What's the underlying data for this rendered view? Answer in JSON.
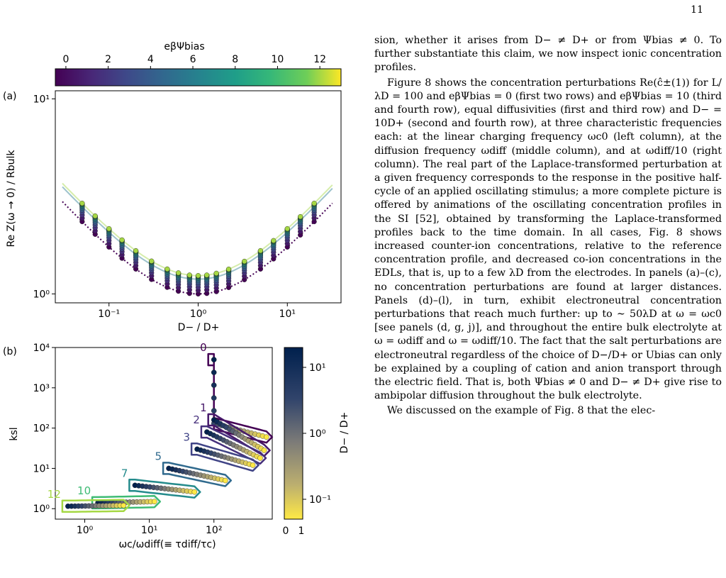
{
  "page": {
    "number": "11"
  },
  "body_text": {
    "p1": "sion, whether it arises from D− ≠ D+ or from Ψbias ≠ 0. To further substantiate this claim, we now inspect ionic concentration profiles.",
    "p2": "Figure 8 shows the concentration perturbations Re(ĉ±(1)) for L/λD = 100 and eβΨbias = 0 (first two rows) and eβΨbias = 10 (third and fourth row), equal diffusivities (first and third row) and D− = 10D+ (second and fourth row), at three characteristic frequencies each: at the linear charging frequency ωc0 (left column), at the diffusion frequency ωdiff (middle column), and at ωdiff/10 (right column). The real part of the Laplace-transformed perturbation at a given frequency corresponds to the response in the positive half-cycle of an applied oscillating stimulus; a more complete picture is offered by animations of the oscillating concentration profiles in the SI [52], obtained by transforming the Laplace-transformed profiles back to the time domain. In all cases, Fig. 8 shows increased counter-ion concentrations, relative to the reference concentration profile, and decreased co-ion concentrations in the EDLs, that is, up to a few λD from the electrodes. In panels (a)–(c), no concentration perturbations are found at larger distances. Panels (d)–(l), in turn, exhibit electroneutral concentration perturbations that reach much further: up to ∼ 50λD at ω = ωc0 [see panels (d, g, j)], and throughout the entire bulk electrolyte at ω = ωdiff and ω = ωdiff/10. The fact that the salt perturbations are electroneutral regardless of the choice of D−/D+ or Ubias can only be explained by a coupling of cation and anion transport through the electric field. That is, both Ψbias ≠ 0 and D− ≠ D+ give rise to ambipolar diffusion throughout the bulk electrolyte.",
    "p3": "We discussed on the example of Fig. 8 that the elec-"
  },
  "figure": {
    "panel_a": {
      "label": "(a)",
      "colorbar_title": "eβΨbias",
      "colorbar_ticks": [
        "0",
        "2",
        "4",
        "6",
        "8",
        "10",
        "12"
      ],
      "ylabel": "Re Z(ω → 0) / Rbulk",
      "xlabel": "D− / D+",
      "yticks": [
        "10⁰",
        "10¹"
      ],
      "xticks": [
        "10⁻¹",
        "10⁰",
        "10¹"
      ]
    },
    "panel_b": {
      "label": "(b)",
      "ylabel": "ksl",
      "xlabel": "ωc/ωdiff(≡ τdiff/τc)",
      "yticks": [
        "10⁰",
        "10¹",
        "10²",
        "10³",
        "10⁴"
      ],
      "xticks": [
        "10⁰",
        "10¹",
        "10²"
      ],
      "colorbar_label": "D− / D+",
      "colorbar_ticks": [
        "10¹",
        "10⁰",
        "10⁻¹"
      ],
      "colorbar_bottom": [
        "0",
        "1"
      ],
      "group_labels": [
        "0",
        "1",
        "2",
        "3",
        "5",
        "7",
        "10",
        "12"
      ]
    }
  },
  "chart_data": [
    {
      "type": "scatter",
      "title": "",
      "xlabel": "D− / D+",
      "ylabel": "Re Z(ω → 0) / Rbulk",
      "xscale": "log",
      "yscale": "log",
      "xlim": [
        0.025,
        40
      ],
      "ylim": [
        0.9,
        11
      ],
      "color_variable": "eβΨbias",
      "color_range": [
        0,
        13
      ],
      "series_params": [
        0,
        1,
        2,
        3,
        4,
        5,
        6,
        7,
        8,
        9,
        10,
        11,
        12
      ],
      "x_points": [
        0.05,
        0.07,
        0.1,
        0.14,
        0.2,
        0.3,
        0.45,
        0.6,
        0.8,
        1.0,
        1.25,
        1.6,
        2.2,
        3.3,
        5,
        7,
        10,
        14,
        20
      ],
      "model": "ReZ/Rbulk = cosh-like minimum at D−/D+ = 1 raised with eβΨbias"
    },
    {
      "type": "scatter",
      "title": "",
      "xlabel": "ωc/ωdiff(≡ τdiff/τc)",
      "ylabel": "ksl",
      "xscale": "log",
      "yscale": "log",
      "xlim": [
        0.35,
        800
      ],
      "ylim": [
        0.55,
        10000
      ],
      "color_variable": "D− / D+",
      "groups": [
        {
          "label": "0",
          "corner": [
            100,
            5000
          ],
          "elbow_y": 130,
          "end": [
            650,
            60
          ]
        },
        {
          "label": "1",
          "corner": [
            100,
            160
          ],
          "end": [
            600,
            28
          ]
        },
        {
          "label": "2",
          "corner": [
            78,
            80
          ],
          "end": [
            520,
            18
          ]
        },
        {
          "label": "3",
          "corner": [
            55,
            30
          ],
          "end": [
            400,
            12
          ]
        },
        {
          "label": "5",
          "corner": [
            20,
            10
          ],
          "end": [
            150,
            5
          ]
        },
        {
          "label": "7",
          "corner": [
            6,
            3.8
          ],
          "end": [
            50,
            2.6
          ]
        },
        {
          "label": "10",
          "corner": [
            1.6,
            1.4
          ],
          "end": [
            12,
            1.5
          ]
        },
        {
          "label": "12",
          "corner": [
            0.55,
            1.15
          ],
          "end": [
            4,
            1.2
          ]
        }
      ]
    }
  ]
}
